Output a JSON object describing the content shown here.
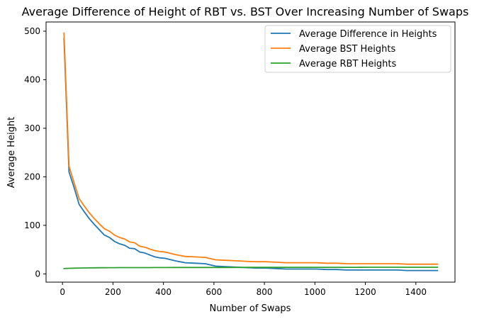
{
  "chart_data": {
    "type": "line",
    "title": "Average Difference of Height of RBT vs. BST Over Increasing Number of Swaps",
    "xlabel": "Number of Swaps",
    "ylabel": "Average Height",
    "xlim": [
      -65,
      1555
    ],
    "ylim": [
      -17,
      519
    ],
    "xticks": [
      0,
      200,
      400,
      600,
      800,
      1000,
      1200,
      1400
    ],
    "yticks": [
      0,
      100,
      200,
      300,
      400,
      500
    ],
    "legend_position": "top-right",
    "grid": false,
    "x": [
      6,
      26,
      46,
      66,
      86,
      106,
      126,
      146,
      166,
      186,
      206,
      226,
      246,
      266,
      286,
      306,
      326,
      346,
      366,
      386,
      406,
      446,
      486,
      526,
      566,
      606,
      646,
      686,
      726,
      766,
      806,
      846,
      886,
      926,
      966,
      1006,
      1046,
      1086,
      1126,
      1166,
      1206,
      1246,
      1286,
      1326,
      1366,
      1406,
      1446,
      1486
    ],
    "series": [
      {
        "name": "Average Difference in Heights",
        "color": "#1f77b4",
        "values": [
          485,
          210,
          178,
          143,
          128,
          114,
          102,
          91,
          80,
          75,
          67,
          62,
          59,
          53,
          52,
          45,
          43,
          39,
          35,
          33,
          32,
          27,
          23,
          22,
          21,
          16,
          15,
          14,
          13,
          12,
          12,
          11,
          10,
          10,
          10,
          10,
          9,
          9,
          8,
          8,
          8,
          8,
          8,
          8,
          7,
          7,
          7,
          7
        ]
      },
      {
        "name": "Average BST Heights",
        "color": "#ff7f0e",
        "values": [
          496,
          222,
          188,
          155,
          140,
          126,
          114,
          103,
          93,
          88,
          80,
          75,
          72,
          66,
          64,
          57,
          55,
          51,
          48,
          46,
          45,
          40,
          36,
          35,
          34,
          29,
          28,
          27,
          26,
          25,
          25,
          24,
          23,
          23,
          23,
          23,
          22,
          22,
          21,
          21,
          21,
          21,
          21,
          21,
          20,
          20,
          20,
          20
        ]
      },
      {
        "name": "Average RBT Heights",
        "color": "#2ca02c",
        "values": [
          11,
          11.5,
          11.8,
          12,
          12.2,
          12.4,
          12.5,
          12.6,
          12.7,
          12.8,
          12.8,
          12.9,
          12.9,
          13,
          13,
          13,
          13,
          13,
          13.1,
          13.1,
          13.1,
          13.2,
          13.2,
          13.3,
          13.3,
          13.3,
          13.3,
          13.4,
          13.4,
          13.4,
          13.4,
          13.4,
          13.5,
          13.5,
          13.5,
          13.5,
          13.5,
          13.5,
          13.5,
          13.5,
          13.6,
          13.6,
          13.6,
          13.6,
          13.6,
          13.6,
          13.6,
          13.6
        ]
      }
    ]
  }
}
